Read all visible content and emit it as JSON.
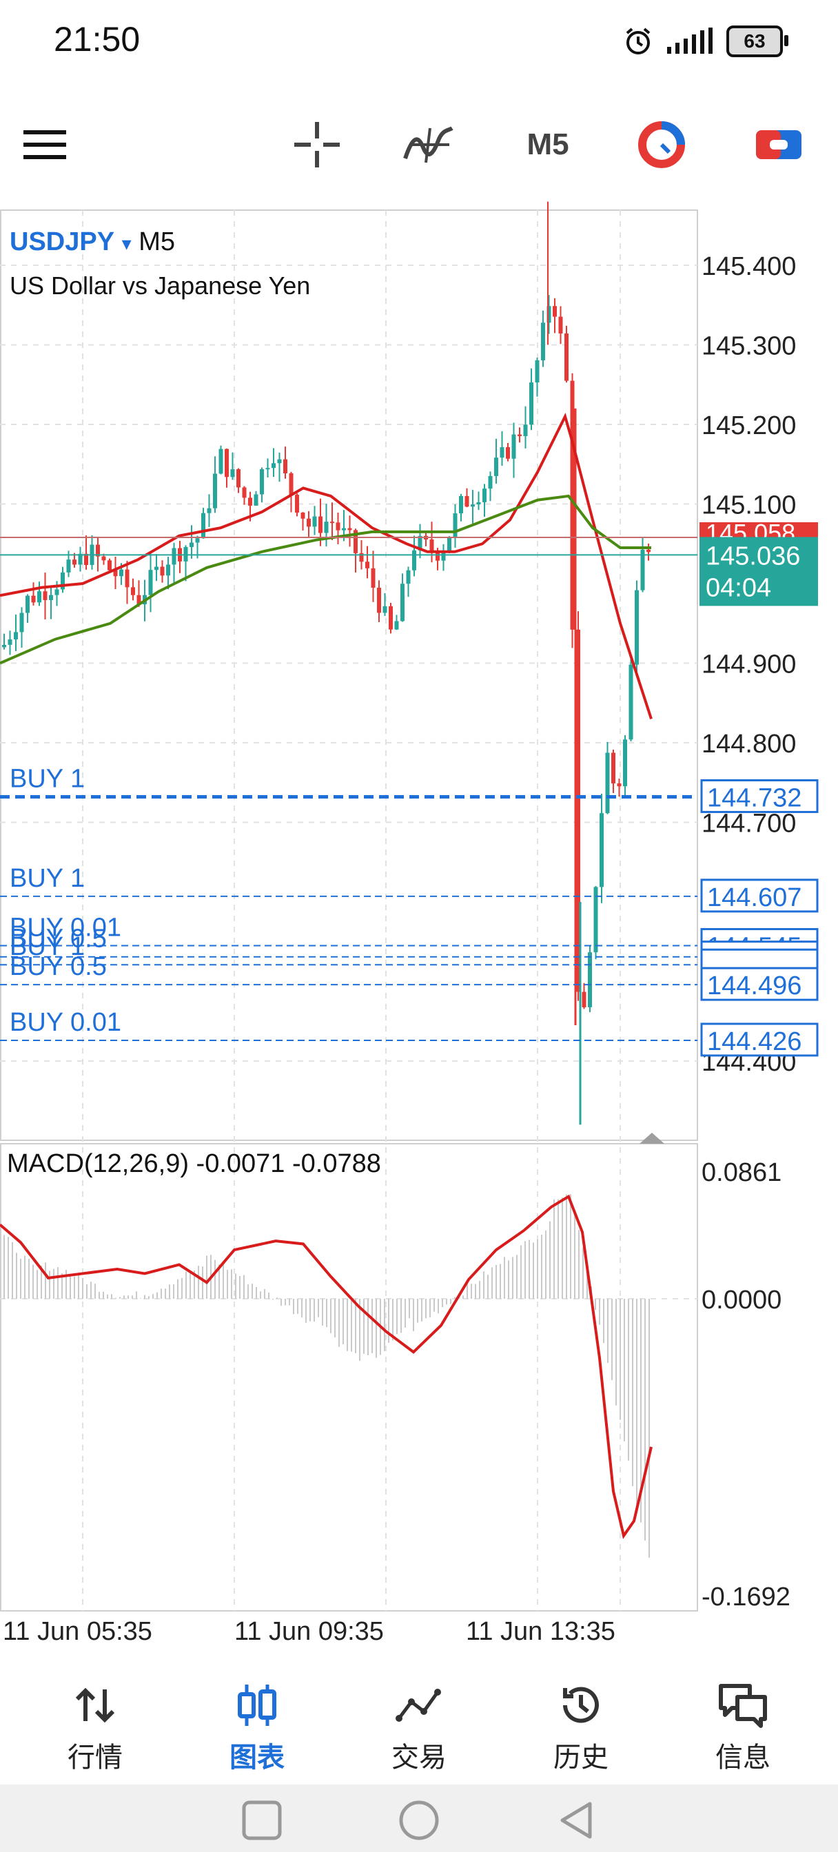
{
  "status_bar": {
    "time": "21:50",
    "battery": "63"
  },
  "toolbar": {
    "timeframe": "M5"
  },
  "chart": {
    "symbol": "USDJPY",
    "symbol_arrow": "▾",
    "timeframe": "M5",
    "description": "US Dollar vs Japanese Yen",
    "price_axis": [
      "145.400",
      "145.300",
      "145.200",
      "145.100",
      "144.900",
      "144.800",
      "144.700",
      "144.400"
    ],
    "bid_price": "145.058",
    "ask_price": "145.036",
    "countdown": "04:04",
    "orders": [
      {
        "label": "BUY 1",
        "price": "144.732"
      },
      {
        "label": "BUY 1",
        "price": "144.607"
      },
      {
        "label": "BUY 0.01",
        "price": "144.545"
      },
      {
        "label": "BUY 0.5",
        "price": "144.531"
      },
      {
        "label": "BUY 1",
        "price": "144.521"
      },
      {
        "label": "BUY 0.5",
        "price": "144.496"
      },
      {
        "label": "BUY 0.01",
        "price": "144.426"
      }
    ],
    "macd": {
      "label": "MACD(12,26,9) -0.0071 -0.0788",
      "axis": [
        "0.0861",
        "0.0000",
        "-0.1692"
      ]
    },
    "time_axis": [
      "11 Jun 05:35",
      "11 Jun 09:35",
      "11 Jun 13:35"
    ],
    "colors": {
      "bull": "#26a69a",
      "bear": "#e53935",
      "ma_fast": "#d81b1b",
      "ma_slow": "#4a8a10",
      "order": "#1f6fd8"
    }
  },
  "bottom_nav": [
    {
      "label": "行情",
      "icon": "quotes-icon"
    },
    {
      "label": "图表",
      "icon": "chart-icon"
    },
    {
      "label": "交易",
      "icon": "trade-icon"
    },
    {
      "label": "历史",
      "icon": "history-icon"
    },
    {
      "label": "信息",
      "icon": "messages-icon"
    }
  ]
}
